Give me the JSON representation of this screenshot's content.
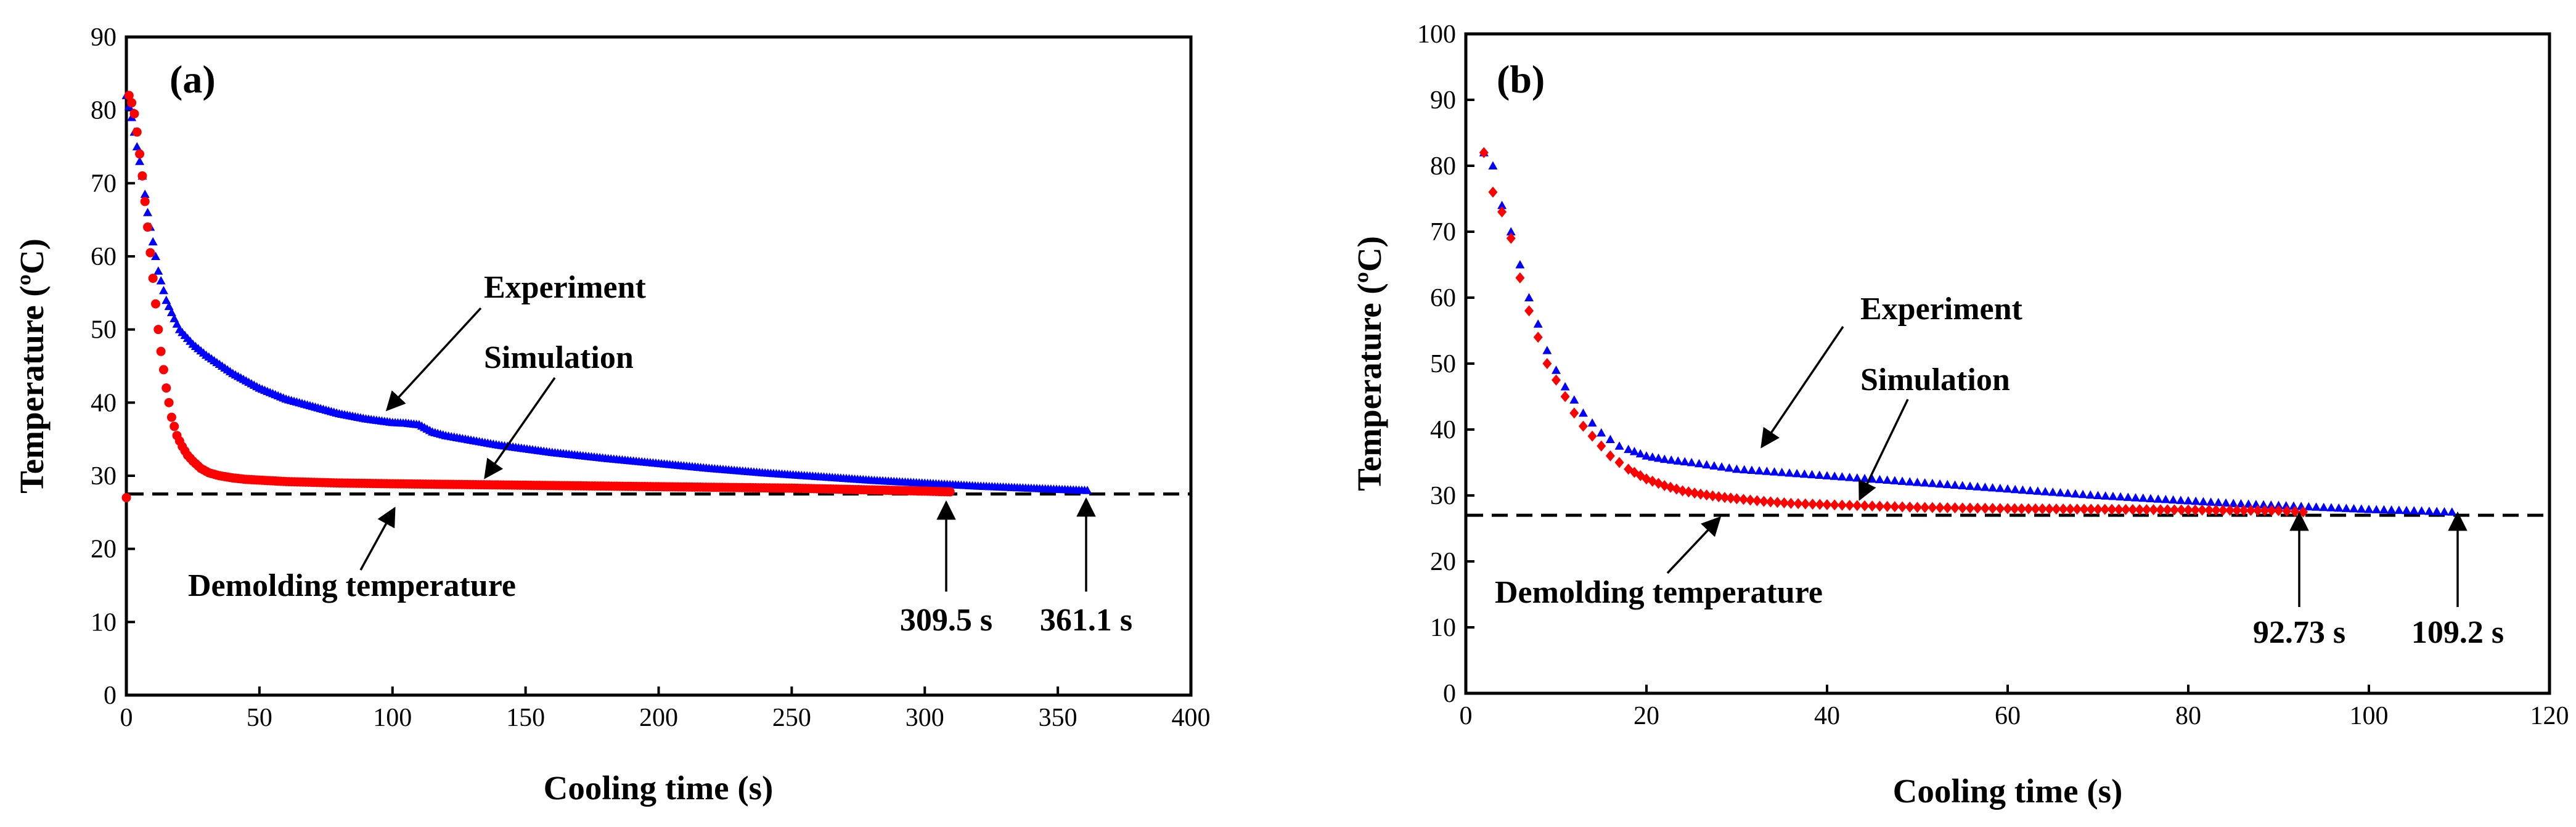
{
  "chart_data": [
    {
      "type": "scatter",
      "panel_label": "(a)",
      "xlabel": "Cooling time (s)",
      "ylabel": "Temperature (ºC)",
      "xlim": [
        0,
        400
      ],
      "ylim": [
        0,
        90
      ],
      "xticks": [
        0,
        50,
        100,
        150,
        200,
        250,
        300,
        350,
        400
      ],
      "yticks": [
        0,
        10,
        20,
        30,
        40,
        50,
        60,
        70,
        80,
        90
      ],
      "series": [
        {
          "name": "Experiment",
          "marker": "triangle",
          "color": "#0000ff",
          "x": [
            0,
            2,
            4,
            6,
            8,
            10,
            12,
            15,
            18,
            20,
            25,
            30,
            40,
            50,
            60,
            70,
            80,
            90,
            100,
            105,
            110,
            115,
            120,
            140,
            160,
            180,
            200,
            220,
            240,
            260,
            280,
            300,
            320,
            340,
            361.1
          ],
          "y": [
            82,
            79,
            75,
            71,
            66,
            62,
            58,
            54,
            51.5,
            50,
            48,
            46.5,
            44,
            42,
            40.5,
            39.5,
            38.5,
            37.8,
            37.3,
            37.2,
            37.0,
            36.0,
            35.5,
            34.2,
            33.2,
            32.4,
            31.7,
            31.0,
            30.4,
            29.9,
            29.4,
            29.0,
            28.6,
            28.3,
            28.0
          ]
        },
        {
          "name": "Simulation",
          "marker": "circle",
          "color": "#ff0000",
          "x": [
            0,
            1,
            2,
            3,
            4,
            5,
            6,
            7,
            8,
            9,
            10,
            11,
            12,
            13,
            14,
            15,
            17,
            19,
            21,
            23,
            25,
            28,
            31,
            35,
            40,
            45,
            50,
            60,
            80,
            100,
            150,
            200,
            250,
            300,
            309.5
          ],
          "y": [
            27,
            82,
            81,
            79.5,
            77,
            74,
            71,
            67.5,
            64,
            60.5,
            57,
            53.5,
            50,
            47,
            44.5,
            42,
            38,
            35.5,
            34,
            32.8,
            32,
            31,
            30.4,
            30,
            29.7,
            29.5,
            29.4,
            29.2,
            29.0,
            28.9,
            28.7,
            28.5,
            28.3,
            27.9,
            27.8
          ]
        }
      ],
      "reference_line": {
        "label": "Demolding temperature",
        "y": 27.5
      },
      "annotations": {
        "experiment": "Experiment",
        "simulation": "Simulation",
        "end_sim": "309.5 s",
        "end_exp": "361.1 s"
      },
      "end_times": [
        309.5,
        361.1
      ]
    },
    {
      "type": "scatter",
      "panel_label": "(b)",
      "xlabel": "Cooling time (s)",
      "ylabel": "Temperature (ºC)",
      "xlim": [
        0,
        120
      ],
      "ylim": [
        0,
        100
      ],
      "xticks": [
        0,
        20,
        40,
        60,
        80,
        100,
        120
      ],
      "yticks": [
        0,
        10,
        20,
        30,
        40,
        50,
        60,
        70,
        80,
        90,
        100
      ],
      "series": [
        {
          "name": "Experiment",
          "marker": "triangle",
          "color": "#0000ff",
          "x": [
            2,
            3,
            4,
            5,
            6,
            7,
            8,
            9,
            10,
            11,
            12,
            13,
            14,
            15,
            16,
            17,
            18,
            20,
            22,
            25,
            30,
            35,
            40,
            45,
            50,
            55,
            60,
            65,
            70,
            75,
            80,
            85,
            90,
            95,
            100,
            105,
            109.2
          ],
          "y": [
            82,
            80,
            74,
            70,
            65,
            60,
            56,
            52,
            49,
            46.5,
            44.5,
            42.5,
            41,
            39.5,
            38.5,
            37.5,
            37,
            36,
            35.5,
            35,
            34,
            33.5,
            33,
            32.5,
            32,
            31.5,
            31,
            30.5,
            30,
            29.6,
            29.2,
            28.8,
            28.5,
            28.2,
            27.9,
            27.7,
            27.5
          ]
        },
        {
          "name": "Simulation",
          "marker": "diamond",
          "color": "#ff0000",
          "x": [
            2,
            3,
            4,
            5,
            6,
            7,
            8,
            9,
            10,
            11,
            12,
            13,
            14,
            15,
            16,
            17,
            18,
            20,
            22,
            24,
            26,
            28,
            30,
            33,
            36,
            40,
            45,
            50,
            55,
            60,
            70,
            80,
            90,
            92.73
          ],
          "y": [
            82,
            76,
            73,
            69,
            63,
            58,
            54,
            50,
            47.5,
            45,
            42.5,
            40.5,
            39,
            37.5,
            36,
            35,
            34,
            32.5,
            31.5,
            30.7,
            30.2,
            29.8,
            29.5,
            29.1,
            28.8,
            28.6,
            28.4,
            28.2,
            28.1,
            28.0,
            27.9,
            27.8,
            27.7,
            27.5
          ]
        }
      ],
      "reference_line": {
        "label": "Demolding temperature",
        "y": 27
      },
      "annotations": {
        "experiment": "Experiment",
        "simulation": "Simulation",
        "end_sim": "92.73 s",
        "end_exp": "109.2 s"
      },
      "end_times": [
        92.73,
        109.2
      ]
    }
  ]
}
